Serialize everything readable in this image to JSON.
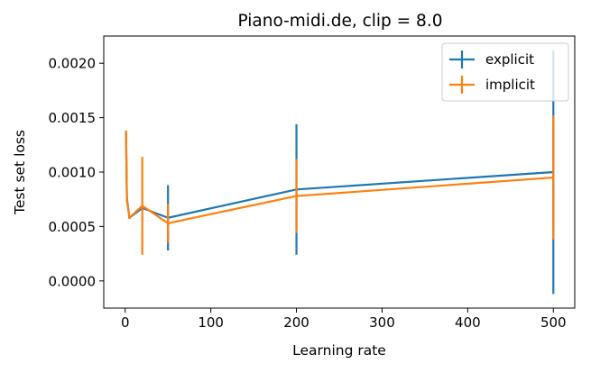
{
  "chart_data": {
    "type": "line",
    "title": "Piano-midi.de, clip = 8.0",
    "xlabel": "Learning rate",
    "ylabel": "Test set loss",
    "xlim": [
      -25,
      525
    ],
    "ylim": [
      -0.00025,
      0.00225
    ],
    "xticks": [
      0,
      100,
      200,
      300,
      400,
      500
    ],
    "xtick_labels": [
      "0",
      "100",
      "200",
      "300",
      "400",
      "500"
    ],
    "yticks": [
      0.0,
      0.0005,
      0.001,
      0.0015,
      0.002
    ],
    "ytick_labels": [
      "0.0000",
      "0.0005",
      "0.0010",
      "0.0015",
      "0.0020"
    ],
    "grid": false,
    "legend_position": "top-right",
    "series": [
      {
        "name": "explicit",
        "color": "#1f77b4",
        "x": [
          1,
          2,
          5,
          20,
          50,
          200,
          500
        ],
        "y": [
          0.00137,
          0.00076,
          0.00058,
          0.00067,
          0.00058,
          0.00084,
          0.001
        ],
        "yerr": [
          1e-05,
          1e-05,
          1e-05,
          1e-05,
          0.0003,
          0.0006,
          0.00112
        ]
      },
      {
        "name": "implicit",
        "color": "#ff7f0e",
        "x": [
          1,
          2,
          5,
          20,
          50,
          200,
          500
        ],
        "y": [
          0.00137,
          0.00074,
          0.00058,
          0.00069,
          0.00053,
          0.00078,
          0.00095
        ],
        "yerr": [
          1e-05,
          1e-05,
          1e-05,
          0.00045,
          0.00018,
          0.00034,
          0.00057
        ]
      }
    ]
  }
}
